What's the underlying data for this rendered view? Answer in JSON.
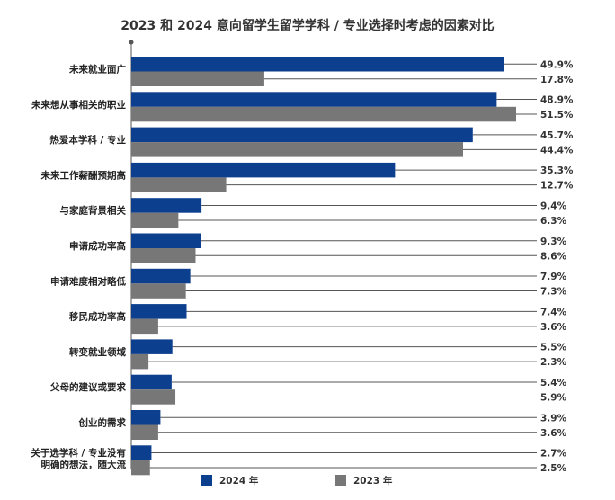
{
  "chart_data": {
    "type": "bar",
    "orientation": "horizontal",
    "title": "2023 和 2024 意向留学生留学学科 / 专业选择时考虑的因素对比",
    "categories": [
      "未来就业面广",
      "未来想从事相关的职业",
      "热爱本学科 / 专业",
      "未来工作薪酬预期高",
      "与家庭背景相关",
      "申请成功率高",
      "申请难度相对略低",
      "移民成功率高",
      "转变就业领域",
      "父母的建议或要求",
      "创业的需求",
      "关于选学科 / 专业没有明确的想法，随大流"
    ],
    "category_lines": [
      [
        "未来就业面广"
      ],
      [
        "未来想从事相关的职业"
      ],
      [
        "热爱本学科 / 专业"
      ],
      [
        "未来工作薪酬预期高"
      ],
      [
        "与家庭背景相关"
      ],
      [
        "申请成功率高"
      ],
      [
        "申请难度相对略低"
      ],
      [
        "移民成功率高"
      ],
      [
        "转变就业领域"
      ],
      [
        "父母的建议或要求"
      ],
      [
        "创业的需求"
      ],
      [
        "关于选学科 / 专业没有",
        "明确的想法，随大流"
      ]
    ],
    "series": [
      {
        "name": "2024 年",
        "color": "#0d3f8f",
        "values": [
          49.9,
          48.9,
          45.7,
          35.3,
          9.4,
          9.3,
          7.9,
          7.4,
          5.5,
          5.4,
          3.9,
          2.7
        ]
      },
      {
        "name": "2023 年",
        "color": "#777777",
        "values": [
          17.8,
          51.5,
          44.4,
          12.7,
          6.3,
          8.6,
          7.3,
          3.6,
          2.3,
          5.9,
          3.6,
          2.5
        ]
      }
    ],
    "value_suffix": "%",
    "xlim": [
      0,
      51.5
    ],
    "grid": false,
    "legend_position": "bottom"
  }
}
